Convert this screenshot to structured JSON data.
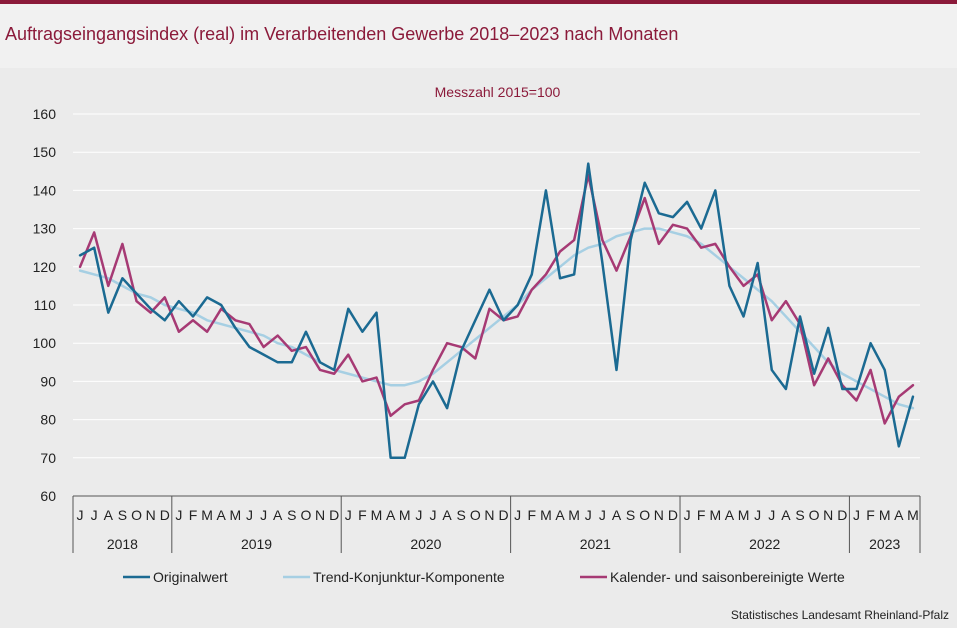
{
  "title": "Auftragseingangsindex (real) im Verarbeitenden Gewerbe 2018–2023 nach Monaten",
  "source": "Statistisches Landesamt Rheinland-Pfalz",
  "colors": {
    "accent": "#8b1a3a",
    "original": "#1b6a92",
    "trend": "#a6cfe3",
    "adjusted": "#a63a74"
  },
  "chart_data": {
    "type": "line",
    "subtitle": "Messzahl 2015=100",
    "ylim": [
      60,
      160
    ],
    "yticks": [
      60,
      70,
      80,
      90,
      100,
      110,
      120,
      130,
      140,
      150,
      160
    ],
    "month_labels": [
      "J",
      "J",
      "A",
      "S",
      "O",
      "N",
      "D",
      "J",
      "F",
      "M",
      "A",
      "M",
      "J",
      "J",
      "A",
      "S",
      "O",
      "N",
      "D",
      "J",
      "F",
      "M",
      "A",
      "M",
      "J",
      "J",
      "A",
      "S",
      "O",
      "N",
      "D",
      "J",
      "F",
      "M",
      "A",
      "M",
      "J",
      "J",
      "A",
      "S",
      "O",
      "N",
      "D",
      "J",
      "F",
      "M",
      "A",
      "M",
      "J",
      "J",
      "A",
      "S",
      "O",
      "N",
      "D",
      "J",
      "F",
      "M",
      "A",
      "M"
    ],
    "years": [
      {
        "label": "2018",
        "start": 0,
        "count": 7
      },
      {
        "label": "2019",
        "start": 7,
        "count": 12
      },
      {
        "label": "2020",
        "start": 19,
        "count": 12
      },
      {
        "label": "2021",
        "start": 31,
        "count": 12
      },
      {
        "label": "2022",
        "start": 43,
        "count": 12
      },
      {
        "label": "2023",
        "start": 55,
        "count": 5
      }
    ],
    "series": [
      {
        "name": "Originalwert",
        "color": "#1b6a92",
        "values": [
          123,
          125,
          108,
          117,
          113,
          109,
          106,
          111,
          107,
          112,
          110,
          104,
          99,
          97,
          95,
          95,
          103,
          95,
          93,
          109,
          103,
          108,
          70,
          70,
          84,
          90,
          83,
          98,
          106,
          114,
          106,
          110,
          118,
          140,
          117,
          118,
          147,
          121,
          93,
          127,
          142,
          134,
          133,
          137,
          130,
          140,
          115,
          107,
          121,
          93,
          88,
          107,
          92,
          104,
          88,
          88,
          100,
          93,
          73,
          86
        ]
      },
      {
        "name": "Trend-Konjunktur-Komponente",
        "color": "#a6cfe3",
        "values": [
          119,
          118,
          117,
          115,
          113,
          112,
          110,
          109,
          108,
          106,
          105,
          104,
          103,
          102,
          100,
          99,
          97,
          95,
          93,
          92,
          91,
          90,
          89,
          89,
          90,
          92,
          95,
          98,
          101,
          104,
          107,
          110,
          114,
          117,
          120,
          123,
          125,
          126,
          128,
          129,
          130,
          130,
          129,
          128,
          126,
          123,
          120,
          117,
          114,
          111,
          107,
          103,
          99,
          95,
          92,
          90,
          88,
          86,
          84,
          83
        ]
      },
      {
        "name": "Kalender- und saisonbereinigte Werte",
        "color": "#a63a74",
        "values": [
          120,
          129,
          115,
          126,
          111,
          108,
          112,
          103,
          106,
          103,
          109,
          106,
          105,
          99,
          102,
          98,
          99,
          93,
          92,
          97,
          90,
          91,
          81,
          84,
          85,
          93,
          100,
          99,
          96,
          109,
          106,
          107,
          114,
          118,
          124,
          127,
          144,
          127,
          119,
          128,
          138,
          126,
          131,
          130,
          125,
          126,
          120,
          115,
          118,
          106,
          111,
          105,
          89,
          96,
          89,
          85,
          93,
          79,
          86,
          89
        ]
      }
    ]
  }
}
